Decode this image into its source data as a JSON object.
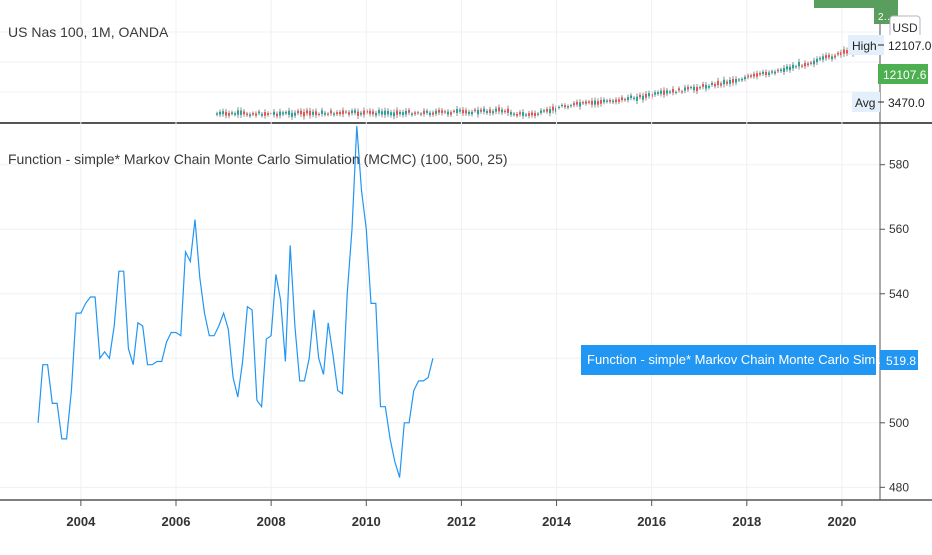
{
  "header": {
    "symbol_title": "US Nas 100, 1M, OANDA",
    "currency": "USD"
  },
  "price_pane": {
    "high_label": "High",
    "high_value": "12107.0",
    "last_value": "12107.6",
    "top_badge": "2…",
    "avg_label": "Avg",
    "avg_value": "3470.0",
    "colors": {
      "up": "#26a69a",
      "down": "#ef5350",
      "badge": "#4caf50"
    }
  },
  "indicator_pane": {
    "title": "Function - simple* Markov Chain Monte Carlo Simulation (MCMC) (100, 500, 25)",
    "series_label": "Function - simple* Markov Chain Monte Carlo Simulation (MCMC)",
    "last_value": "519.8",
    "line_color": "#2196f3"
  },
  "chart_data": [
    {
      "type": "line",
      "title": "Function - simple* Markov Chain Monte Carlo Simulation (MCMC) (100, 500, 25)",
      "xlabel": "",
      "ylabel": "",
      "xlim": [
        2002.3,
        2020.8
      ],
      "ylim": [
        477,
        592
      ],
      "x_ticks": [
        "2004",
        "2006",
        "2008",
        "2010",
        "2012",
        "2014",
        "2016",
        "2018",
        "2020"
      ],
      "y_ticks": [
        480,
        500,
        520,
        540,
        560,
        580
      ],
      "grid": true,
      "legend": "none",
      "series": [
        {
          "x": [
            2003.1,
            2003.2,
            2003.3,
            2003.4,
            2003.5,
            2003.6,
            2003.7,
            2003.8,
            2003.9,
            2004.0,
            2004.1,
            2004.2,
            2004.3,
            2004.4,
            2004.5,
            2004.6,
            2004.7,
            2004.8,
            2004.9,
            2005.0,
            2005.1,
            2005.2,
            2005.3,
            2005.4,
            2005.5,
            2005.6,
            2005.7,
            2005.8,
            2005.9,
            2006.0,
            2006.1,
            2006.2,
            2006.3,
            2006.4,
            2006.5,
            2006.6,
            2006.7,
            2006.8,
            2006.9,
            2007.0,
            2007.1,
            2007.2,
            2007.3,
            2007.4,
            2007.5,
            2007.6,
            2007.7,
            2007.8,
            2007.9,
            2008.0,
            2008.1,
            2008.2,
            2008.3,
            2008.4,
            2008.5,
            2008.6,
            2008.7,
            2008.8,
            2008.9,
            2009.0,
            2009.1,
            2009.2,
            2009.3,
            2009.4,
            2009.5,
            2009.6,
            2009.7,
            2009.8,
            2009.9,
            2010.0,
            2010.1,
            2010.2,
            2010.3,
            2010.4,
            2010.5,
            2010.6,
            2010.7,
            2010.8,
            2010.9,
            2011.0,
            2011.1,
            2011.2,
            2011.3,
            2011.4
          ],
          "y": [
            500,
            518,
            518,
            506,
            506,
            495,
            495,
            510,
            534,
            534,
            537,
            539,
            539,
            520,
            522,
            520,
            530,
            547,
            547,
            523,
            518,
            531,
            530,
            518,
            518,
            519,
            519,
            525,
            528,
            528,
            527,
            553,
            550,
            563,
            545,
            534,
            527,
            527,
            530,
            534,
            529,
            514,
            508,
            519,
            536,
            535,
            507,
            505,
            526,
            527,
            546,
            538,
            519,
            555,
            530,
            513,
            513,
            520,
            535,
            520,
            515,
            531,
            521,
            510,
            509,
            540,
            560,
            592,
            572,
            560,
            537,
            537,
            505,
            505,
            495,
            488,
            483,
            500,
            500,
            510,
            513,
            513,
            514,
            520
          ]
        }
      ]
    }
  ]
}
